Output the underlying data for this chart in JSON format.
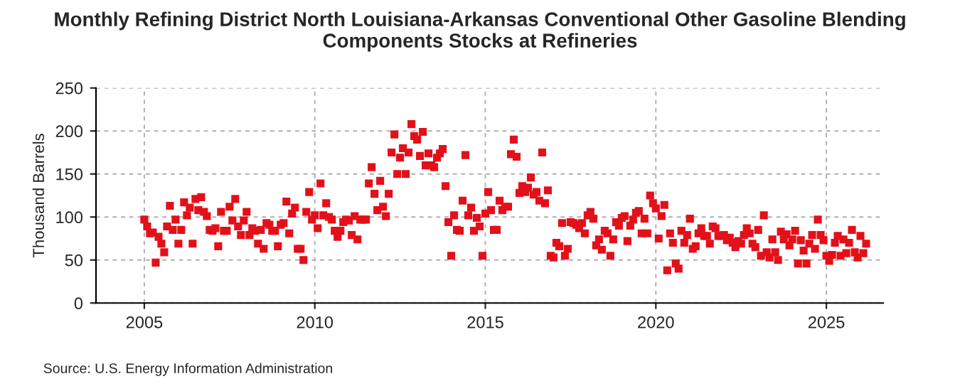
{
  "chart_data": {
    "type": "scatter",
    "title": "Monthly Refining District North Louisiana-Arkansas Conventional Other Gasoline Blending\nComponents Stocks at Refineries",
    "ylabel": "Thousand Barrels",
    "annotations": [
      "Source: U.S. Energy Information Administration"
    ],
    "x": [
      "2005-01",
      "2005-02",
      "2005-03",
      "2005-04",
      "2005-05",
      "2005-06",
      "2005-07",
      "2005-08",
      "2005-09",
      "2005-10",
      "2005-11",
      "2005-12",
      "2006-01",
      "2006-02",
      "2006-03",
      "2006-04",
      "2006-05",
      "2006-06",
      "2006-07",
      "2006-08",
      "2006-09",
      "2006-10",
      "2006-11",
      "2006-12",
      "2007-01",
      "2007-02",
      "2007-03",
      "2007-04",
      "2007-05",
      "2007-06",
      "2007-07",
      "2007-08",
      "2007-09",
      "2007-10",
      "2007-11",
      "2007-12",
      "2008-01",
      "2008-02",
      "2008-03",
      "2008-04",
      "2008-05",
      "2008-06",
      "2008-07",
      "2008-08",
      "2008-09",
      "2008-10",
      "2008-11",
      "2008-12",
      "2009-01",
      "2009-02",
      "2009-03",
      "2009-04",
      "2009-05",
      "2009-06",
      "2009-07",
      "2009-08",
      "2009-09",
      "2009-10",
      "2009-11",
      "2009-12",
      "2010-01",
      "2010-02",
      "2010-03",
      "2010-04",
      "2010-05",
      "2010-06",
      "2010-07",
      "2010-08",
      "2010-09",
      "2010-10",
      "2010-11",
      "2010-12",
      "2011-01",
      "2011-02",
      "2011-03",
      "2011-04",
      "2011-05",
      "2011-06",
      "2011-07",
      "2011-08",
      "2011-09",
      "2011-10",
      "2011-11",
      "2011-12",
      "2012-01",
      "2012-02",
      "2012-03",
      "2012-04",
      "2012-05",
      "2012-06",
      "2012-07",
      "2012-08",
      "2012-09",
      "2012-10",
      "2012-11",
      "2012-12",
      "2013-01",
      "2013-02",
      "2013-03",
      "2013-04",
      "2013-05",
      "2013-06",
      "2013-07",
      "2013-08",
      "2013-09",
      "2013-10",
      "2013-11",
      "2013-12",
      "2014-01",
      "2014-02",
      "2014-03",
      "2014-04",
      "2014-05",
      "2014-06",
      "2014-07",
      "2014-08",
      "2014-09",
      "2014-10",
      "2014-11",
      "2014-12",
      "2015-01",
      "2015-02",
      "2015-03",
      "2015-04",
      "2015-05",
      "2015-06",
      "2015-07",
      "2015-08",
      "2015-09",
      "2015-10",
      "2015-11",
      "2015-12",
      "2016-01",
      "2016-02",
      "2016-03",
      "2016-04",
      "2016-05",
      "2016-06",
      "2016-07",
      "2016-08",
      "2016-09",
      "2016-10",
      "2016-11",
      "2016-12",
      "2017-01",
      "2017-02",
      "2017-03",
      "2017-04",
      "2017-05",
      "2017-06",
      "2017-07",
      "2017-08",
      "2017-09",
      "2017-10",
      "2017-11",
      "2017-12",
      "2018-01",
      "2018-02",
      "2018-03",
      "2018-04",
      "2018-05",
      "2018-06",
      "2018-07",
      "2018-08",
      "2018-09",
      "2018-10",
      "2018-11",
      "2018-12",
      "2019-01",
      "2019-02",
      "2019-03",
      "2019-04",
      "2019-05",
      "2019-06",
      "2019-07",
      "2019-08",
      "2019-09",
      "2019-10",
      "2019-11",
      "2019-12",
      "2020-01",
      "2020-02",
      "2020-03",
      "2020-04",
      "2020-05",
      "2020-06",
      "2020-07",
      "2020-08",
      "2020-09",
      "2020-10",
      "2020-11",
      "2020-12",
      "2021-01",
      "2021-02",
      "2021-03",
      "2021-04",
      "2021-05",
      "2021-06",
      "2021-07",
      "2021-08",
      "2021-09",
      "2021-10",
      "2021-11",
      "2021-12",
      "2022-01",
      "2022-02",
      "2022-03",
      "2022-04",
      "2022-05",
      "2022-06",
      "2022-07",
      "2022-08",
      "2022-09",
      "2022-10",
      "2022-11",
      "2022-12",
      "2023-01",
      "2023-02",
      "2023-03",
      "2023-04",
      "2023-05",
      "2023-06",
      "2023-07",
      "2023-08",
      "2023-09",
      "2023-10",
      "2023-11",
      "2023-12",
      "2024-01",
      "2024-02",
      "2024-03",
      "2024-04",
      "2024-05",
      "2024-06",
      "2024-07",
      "2024-08",
      "2024-09",
      "2024-10",
      "2024-11",
      "2024-12",
      "2025-01",
      "2025-02",
      "2025-03",
      "2025-04",
      "2025-05",
      "2025-06",
      "2025-07",
      "2025-08",
      "2025-09",
      "2025-10",
      "2025-11",
      "2025-12",
      "2026-01",
      "2026-02",
      "2026-03"
    ],
    "series": [
      {
        "color": "#e3101a",
        "values": [
          97,
          89,
          81,
          82,
          47,
          77,
          69,
          59,
          89,
          113,
          85,
          97,
          69,
          85,
          117,
          102,
          111,
          69,
          121,
          108,
          123,
          106,
          101,
          85,
          84,
          87,
          66,
          106,
          84,
          84,
          112,
          96,
          121,
          89,
          79,
          96,
          106,
          79,
          87,
          84,
          69,
          85,
          63,
          93,
          91,
          84,
          84,
          66,
          91,
          93,
          118,
          81,
          104,
          111,
          63,
          63,
          50,
          106,
          129,
          97,
          102,
          87,
          139,
          102,
          116,
          100,
          97,
          84,
          77,
          84,
          94,
          97,
          96,
          79,
          101,
          74,
          97,
          97,
          97,
          139,
          158,
          127,
          108,
          142,
          112,
          101,
          127,
          175,
          196,
          150,
          169,
          180,
          150,
          175,
          208,
          194,
          190,
          171,
          199,
          160,
          174,
          160,
          158,
          169,
          174,
          179,
          136,
          94,
          55,
          102,
          85,
          84,
          119,
          172,
          102,
          111,
          84,
          99,
          89,
          55,
          104,
          129,
          108,
          85,
          85,
          119,
          108,
          112,
          112,
          173,
          190,
          170,
          128,
          136,
          129,
          134,
          146,
          126,
          129,
          119,
          175,
          116,
          131,
          55,
          53,
          70,
          66,
          93,
          55,
          63,
          94,
          93,
          91,
          87,
          93,
          81,
          102,
          106,
          98,
          67,
          74,
          62,
          84,
          81,
          55,
          74,
          94,
          90,
          99,
          101,
          72,
          90,
          97,
          105,
          107,
          81,
          98,
          81,
          125,
          116,
          110,
          75,
          101,
          114,
          38,
          81,
          70,
          46,
          40,
          84,
          70,
          79,
          98,
          63,
          66,
          81,
          87,
          78,
          78,
          69,
          89,
          87,
          78,
          78,
          79,
          73,
          76,
          70,
          65,
          72,
          69,
          79,
          87,
          81,
          69,
          65,
          85,
          55,
          102,
          59,
          53,
          74,
          59,
          50,
          83,
          74,
          80,
          67,
          74,
          84,
          46,
          73,
          61,
          46,
          69,
          79,
          63,
          97,
          79,
          73,
          55,
          49,
          56,
          70,
          78,
          55,
          74,
          58,
          70,
          85,
          59,
          53,
          78,
          58,
          69
        ]
      }
    ],
    "marker": "square",
    "xlim": [
      "2003-08",
      "2026-09"
    ],
    "xticks": [
      {
        "value": "2005",
        "label": "2005"
      },
      {
        "value": "2010",
        "label": "2010"
      },
      {
        "value": "2015",
        "label": "2015"
      },
      {
        "value": "2020",
        "label": "2020"
      },
      {
        "value": "2025",
        "label": "2025"
      }
    ],
    "ylim": [
      0,
      250
    ],
    "yticks": [
      0,
      50,
      100,
      150,
      200,
      250
    ],
    "grid": true
  }
}
